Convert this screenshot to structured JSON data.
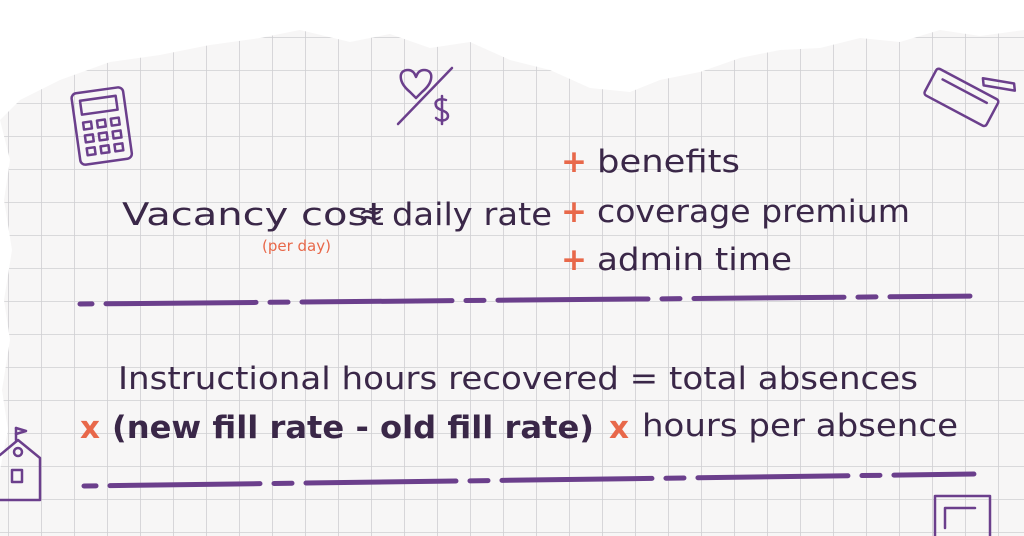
{
  "vacancy": {
    "lead": "Vacancy cost",
    "approx": "≈",
    "base": "daily rate",
    "note": "(per day)",
    "terms": [
      {
        "op": "+",
        "text": "benefits"
      },
      {
        "op": "+",
        "text": "coverage premium"
      },
      {
        "op": "+",
        "text": "admin time"
      }
    ]
  },
  "hours": {
    "line1": "Instructional hours recovered = total absences",
    "op1": "x",
    "difference": "(new fill rate - old fill rate)",
    "op2": "x",
    "last": "hours per absence"
  }
}
